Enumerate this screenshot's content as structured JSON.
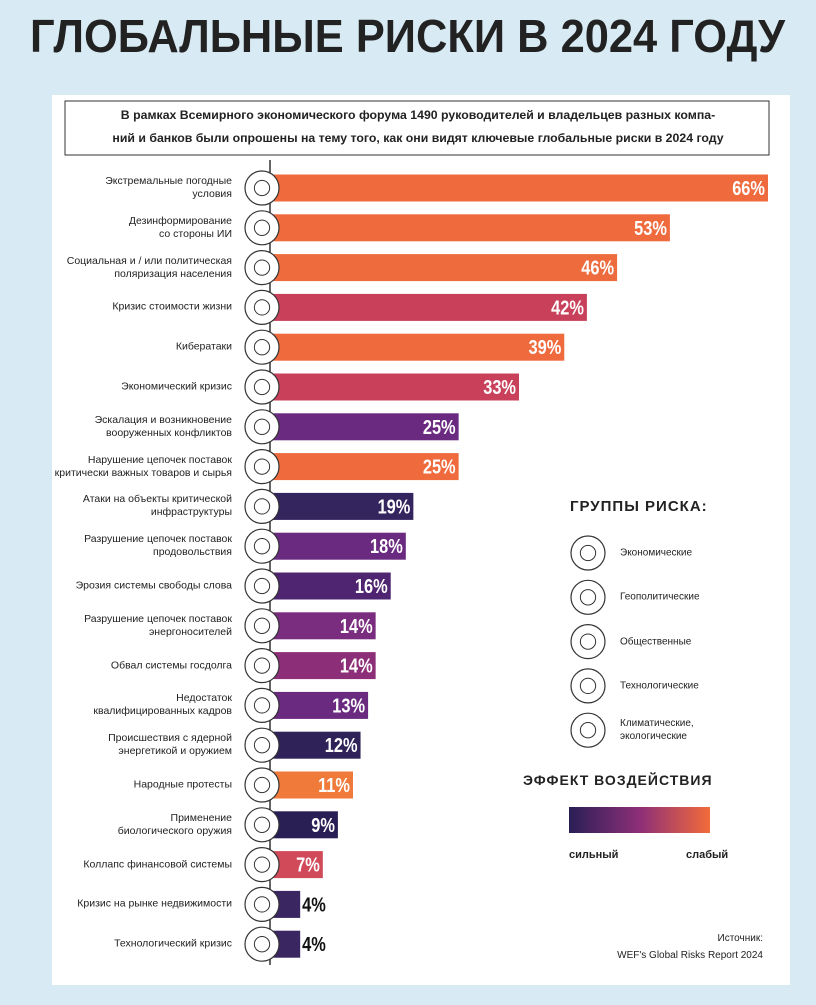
{
  "chart_data": {
    "type": "bar",
    "title": "ГЛОБАЛЬНЫЕ РИСКИ В 2024 ГОДУ",
    "subtitle": "В рамках Всемирного экономического форума 1490 руководителей и владельцев разных компа-\nний и банков были опрошены на тему того, как они видят ключевые глобальные риски в 2024 году",
    "categories": [
      "Экстремальные погодные\nусловия",
      "Дезинформирование\nсо стороны ИИ",
      "Социальная и / или политическая\nполяризация населения",
      "Кризис стоимости жизни",
      "Кибератаки",
      "Экономический кризис",
      "Эскалация и возникновение\nвооруженных конфликтов",
      "Нарушение цепочек поставок\nкритически важных товаров и сырья",
      "Атаки на объекты критической\nинфраструктуры",
      "Разрушение цепочек поставок\nпродовольствия",
      "Эрозия системы свободы слова",
      "Разрушение цепочек поставок\nэнергоносителей",
      "Обвал системы госдолга",
      "Недостаток\nквалифицированных кадров",
      "Происшествия с ядерной\nэнергетикой и оружием",
      "Народные протесты",
      "Применение\nбиологического оружия",
      "Коллапс финансовой системы",
      "Кризис на рынке недвижимости",
      "Технологический кризис"
    ],
    "values": [
      66,
      53,
      46,
      42,
      39,
      33,
      25,
      25,
      19,
      18,
      16,
      14,
      14,
      13,
      12,
      11,
      9,
      7,
      4,
      4
    ],
    "value_labels": [
      "66%",
      "53%",
      "46%",
      "42%",
      "39%",
      "33%",
      "25%",
      "25%",
      "19%",
      "18%",
      "16%",
      "14%",
      "14%",
      "13%",
      "12%",
      "11%",
      "9%",
      "7%",
      "4%",
      "4%"
    ],
    "colors": [
      "#ef6a3c",
      "#ef6a3c",
      "#ee6b3e",
      "#c8405a",
      "#ef6a3c",
      "#c8405a",
      "#6a2a80",
      "#ef6a3c",
      "#35255e",
      "#6a2a80",
      "#4f2470",
      "#7a2c7e",
      "#8d2f78",
      "#6a2a80",
      "#2f2258",
      "#f07a3a",
      "#2a1f55",
      "#d04a5a",
      "#3a2660",
      "#3a2660"
    ],
    "legend_title": "ГРУППЫ РИСКА:",
    "legend": [
      "Экономические",
      "Геополитические",
      "Общественные",
      "Технологические",
      "Климатические,\nэкологические"
    ],
    "effect_title": "ЭФФЕКТ ВОЗДЕЙСТВИЯ",
    "effect_low": "сильный",
    "effect_high": "слабый",
    "source": "Источник:\nWEF's Global Risks Report 2024"
  }
}
